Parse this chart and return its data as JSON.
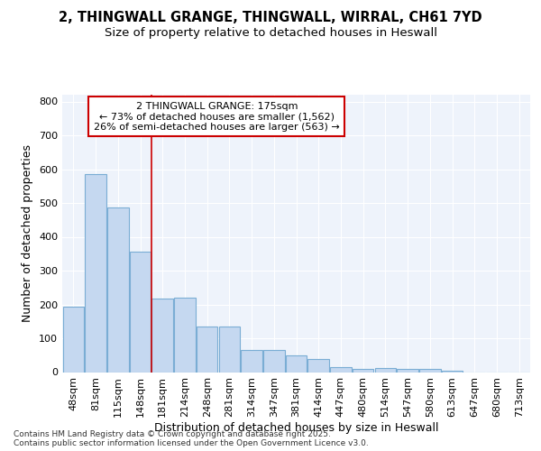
{
  "title1": "2, THINGWALL GRANGE, THINGWALL, WIRRAL, CH61 7YD",
  "title2": "Size of property relative to detached houses in Heswall",
  "xlabel": "Distribution of detached houses by size in Heswall",
  "ylabel": "Number of detached properties",
  "categories": [
    "48sqm",
    "81sqm",
    "115sqm",
    "148sqm",
    "181sqm",
    "214sqm",
    "248sqm",
    "281sqm",
    "314sqm",
    "347sqm",
    "381sqm",
    "414sqm",
    "447sqm",
    "480sqm",
    "514sqm",
    "547sqm",
    "580sqm",
    "613sqm",
    "647sqm",
    "680sqm",
    "713sqm"
  ],
  "values": [
    193,
    585,
    487,
    355,
    218,
    219,
    135,
    134,
    65,
    65,
    50,
    38,
    15,
    10,
    11,
    10,
    10,
    5,
    0,
    0,
    0
  ],
  "bar_color": "#c5d8f0",
  "bar_edge_color": "#7aadd4",
  "vline_color": "#cc0000",
  "vline_index": 4,
  "annotation_text_line1": "2 THINGWALL GRANGE: 175sqm",
  "annotation_text_line2": "← 73% of detached houses are smaller (1,562)",
  "annotation_text_line3": "26% of semi-detached houses are larger (563) →",
  "annotation_box_color": "#ffffff",
  "annotation_box_edge_color": "#cc0000",
  "ylim": [
    0,
    820
  ],
  "yticks": [
    0,
    100,
    200,
    300,
    400,
    500,
    600,
    700,
    800
  ],
  "bg_color": "#ffffff",
  "plot_bg_color": "#eef3fb",
  "grid_color": "#ffffff",
  "footer_text": "Contains HM Land Registry data © Crown copyright and database right 2025.\nContains public sector information licensed under the Open Government Licence v3.0.",
  "title1_fontsize": 10.5,
  "title2_fontsize": 9.5,
  "axis_label_fontsize": 9,
  "tick_fontsize": 8,
  "annot_fontsize": 8,
  "footer_fontsize": 6.5
}
